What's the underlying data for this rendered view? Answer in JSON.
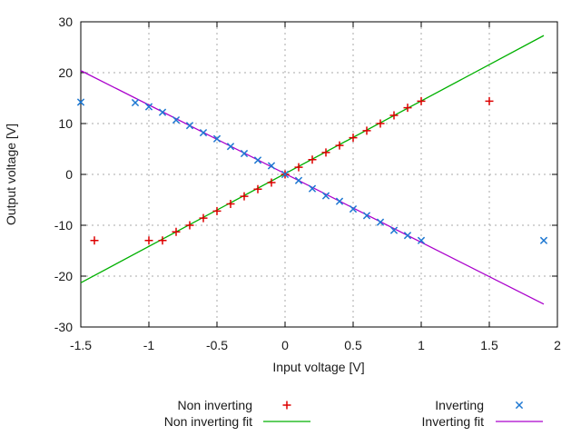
{
  "chart_data": {
    "type": "scatter",
    "title": "",
    "xlabel": "Input voltage [V]",
    "ylabel": "Output voltage [V]",
    "xlim": [
      -1.5,
      2
    ],
    "ylim": [
      -30,
      30
    ],
    "xtick_values": [
      -1.5,
      -1,
      -0.5,
      0,
      0.5,
      1,
      1.5,
      2
    ],
    "xtick_labels": [
      "-1.5",
      "-1",
      "-0.5",
      "0",
      "0.5",
      "1",
      "1.5",
      "2"
    ],
    "ytick_values": [
      -30,
      -20,
      -10,
      0,
      10,
      20,
      30
    ],
    "ytick_labels": [
      "-30",
      "-20",
      "-10",
      "0",
      "10",
      "20",
      "30"
    ],
    "grid": true,
    "legend_position": "below-plot, two columns",
    "colors": {
      "background": "#ffffff",
      "axis": "#000000",
      "grid": "#a8a8a8",
      "text": "#1a1a1a",
      "non_inverting": "#dd0000",
      "non_inverting_fit": "#00b000",
      "inverting": "#1e78d2",
      "inverting_fit": "#aa00cc"
    },
    "series": [
      {
        "name": "Non inverting",
        "kind": "points",
        "marker": "plus",
        "color": "#dd0000",
        "points": [
          [
            -1.4,
            -13
          ],
          [
            -1.0,
            -13
          ],
          [
            -0.9,
            -13
          ],
          [
            -0.8,
            -11.3
          ],
          [
            -0.7,
            -10
          ],
          [
            -0.6,
            -8.6
          ],
          [
            -0.5,
            -7.2
          ],
          [
            -0.4,
            -5.8
          ],
          [
            -0.3,
            -4.3
          ],
          [
            -0.2,
            -2.9
          ],
          [
            -0.1,
            -1.6
          ],
          [
            0,
            0
          ],
          [
            0.1,
            1.4
          ],
          [
            0.2,
            2.9
          ],
          [
            0.3,
            4.3
          ],
          [
            0.4,
            5.7
          ],
          [
            0.5,
            7.2
          ],
          [
            0.6,
            8.6
          ],
          [
            0.7,
            10
          ],
          [
            0.8,
            11.6
          ],
          [
            0.9,
            13.1
          ],
          [
            1.0,
            14.4
          ],
          [
            1.5,
            14.4
          ]
        ]
      },
      {
        "name": "Inverting",
        "kind": "points",
        "marker": "cross",
        "color": "#1e78d2",
        "points": [
          [
            -1.5,
            14.2
          ],
          [
            -1.1,
            14.1
          ],
          [
            -1.0,
            13.3
          ],
          [
            -0.9,
            12.2
          ],
          [
            -0.8,
            10.7
          ],
          [
            -0.7,
            9.6
          ],
          [
            -0.6,
            8.2
          ],
          [
            -0.5,
            7
          ],
          [
            -0.4,
            5.5
          ],
          [
            -0.3,
            4.1
          ],
          [
            -0.2,
            2.8
          ],
          [
            -0.1,
            1.7
          ],
          [
            0,
            0
          ],
          [
            0.1,
            -1.2
          ],
          [
            0.2,
            -2.8
          ],
          [
            0.3,
            -4.2
          ],
          [
            0.4,
            -5.3
          ],
          [
            0.5,
            -6.8
          ],
          [
            0.6,
            -8.1
          ],
          [
            0.7,
            -9.4
          ],
          [
            0.8,
            -11
          ],
          [
            0.9,
            -12
          ],
          [
            1.0,
            -13
          ],
          [
            1.9,
            -13
          ]
        ]
      },
      {
        "name": "Non inverting fit",
        "kind": "line",
        "color": "#00b000",
        "slope": 14.3,
        "intercept": 0.15,
        "points": [
          [
            -1.5,
            -21.3
          ],
          [
            1.9,
            27.3
          ]
        ]
      },
      {
        "name": "Inverting fit",
        "kind": "line",
        "color": "#aa00cc",
        "slope": -13.5,
        "intercept": 0.1,
        "points": [
          [
            -1.5,
            20.4
          ],
          [
            1.9,
            -25.5
          ]
        ]
      }
    ],
    "legend": {
      "rows": [
        {
          "left": "Non inverting",
          "right": "Inverting"
        },
        {
          "left": "Non inverting fit",
          "right": "Inverting fit"
        }
      ]
    }
  }
}
